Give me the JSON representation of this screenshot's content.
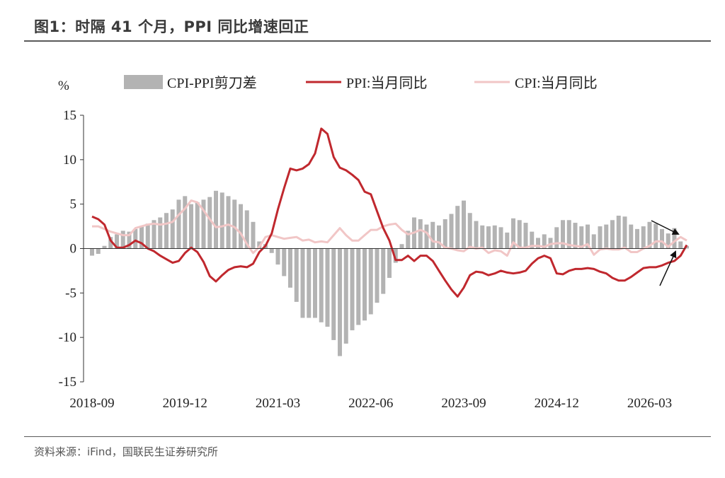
{
  "title": "图1：时隔 41 个月，PPI 同比增速回正",
  "source": "资料来源：iFind，国联民生证券研究所",
  "colors": {
    "bar": "#b3b3b3",
    "ppi": "#c0282e",
    "cpi": "#f1c6c6",
    "arrow": "#111111"
  },
  "chart_data": {
    "type": "bar",
    "ylabel": "%",
    "ylim": [
      -15,
      15
    ],
    "yticks": [
      15,
      10,
      5,
      0,
      -5,
      -10,
      -15
    ],
    "xticks": [
      "2018-09",
      "2019-12",
      "2021-03",
      "2022-06",
      "2023-09",
      "2024-12",
      "2026-03"
    ],
    "x_start": "2018-09",
    "legend_position": "top",
    "series": [
      {
        "name": "CPI-PPI剪刀差",
        "type": "bar",
        "values": [
          -0.8,
          -0.6,
          0.3,
          1.3,
          1.6,
          2.0,
          1.9,
          2.2,
          2.5,
          2.8,
          3.2,
          3.5,
          4.0,
          4.4,
          5.5,
          5.9,
          5.0,
          5.2,
          5.5,
          5.8,
          6.5,
          6.3,
          5.9,
          5.5,
          5.0,
          4.3,
          3.0,
          0.8,
          0.5,
          -0.5,
          -1.8,
          -3.1,
          -4.4,
          -6.0,
          -7.8,
          -7.8,
          -7.8,
          -8.3,
          -8.8,
          -10.3,
          -12.1,
          -10.7,
          -9.2,
          -8.6,
          -8.1,
          -7.4,
          -6.1,
          -5.1,
          -3.3,
          -1.6,
          0.5,
          2.0,
          3.5,
          3.3,
          2.7,
          3.0,
          2.6,
          3.3,
          3.9,
          4.8,
          5.4,
          4.0,
          3.1,
          2.6,
          2.5,
          2.6,
          2.4,
          1.8,
          3.4,
          3.2,
          2.9,
          1.9,
          1.2,
          1.6,
          1.2,
          2.4,
          3.2,
          3.2,
          2.9,
          2.5,
          2.7,
          1.6,
          2.5,
          2.7,
          3.2,
          3.7,
          3.6,
          2.7,
          2.2,
          2.5,
          3.0,
          2.8,
          2.2,
          1.7,
          2.3,
          0.8,
          0.3
        ]
      },
      {
        "name": "PPI:当月同比",
        "type": "line",
        "values": [
          3.6,
          3.3,
          2.7,
          0.9,
          0.1,
          0.1,
          0.4,
          0.9,
          0.6,
          0.0,
          -0.3,
          -0.8,
          -1.2,
          -1.6,
          -1.4,
          -0.5,
          0.1,
          -0.4,
          -1.5,
          -3.1,
          -3.7,
          -3.0,
          -2.4,
          -2.1,
          -2.0,
          -2.1,
          -1.7,
          -0.4,
          0.3,
          1.7,
          4.4,
          6.8,
          9.0,
          8.8,
          9.0,
          9.5,
          10.7,
          13.5,
          12.9,
          10.3,
          9.1,
          8.8,
          8.3,
          7.7,
          6.4,
          6.1,
          4.2,
          2.3,
          0.9,
          -1.3,
          -1.3,
          -0.8,
          -1.4,
          -0.8,
          -0.8,
          -1.4,
          -2.5,
          -3.6,
          -4.6,
          -5.4,
          -4.4,
          -3.0,
          -2.6,
          -2.7,
          -3.0,
          -2.8,
          -2.5,
          -2.7,
          -2.8,
          -2.7,
          -2.5,
          -1.7,
          -1.1,
          -0.8,
          -1.1,
          -2.8,
          -2.9,
          -2.5,
          -2.3,
          -2.3,
          -2.2,
          -2.3,
          -2.6,
          -2.8,
          -3.3,
          -3.6,
          -3.6,
          -3.2,
          -2.7,
          -2.2,
          -2.1,
          -2.1,
          -1.9,
          -1.6,
          -1.4,
          -0.8,
          0.4
        ]
      },
      {
        "name": "CPI:当月同比",
        "type": "line",
        "values": [
          2.5,
          2.5,
          2.2,
          1.9,
          1.7,
          1.5,
          1.5,
          2.3,
          2.5,
          2.7,
          2.8,
          2.7,
          2.8,
          3.0,
          3.8,
          4.5,
          5.4,
          5.2,
          4.3,
          3.3,
          2.4,
          2.5,
          2.7,
          2.4,
          1.7,
          0.5,
          -0.5,
          0.2,
          1.3,
          1.5,
          1.3,
          1.1,
          1.2,
          1.3,
          0.9,
          1.0,
          0.7,
          0.8,
          0.7,
          1.5,
          2.3,
          1.5,
          0.9,
          0.9,
          1.5,
          2.1,
          2.1,
          2.5,
          2.7,
          2.8,
          2.1,
          1.6,
          1.8,
          2.1,
          1.8,
          0.8,
          0.7,
          0.1,
          0.0,
          -0.2,
          -0.3,
          0.2,
          0.0,
          0.1,
          -0.5,
          -0.2,
          -0.3,
          -0.8,
          0.7,
          0.1,
          0.1,
          0.3,
          0.3,
          0.2,
          0.5,
          0.6,
          0.6,
          0.4,
          0.3,
          0.2,
          0.5,
          -0.7,
          -0.1,
          0.0,
          -0.1,
          -0.1,
          0.1,
          -0.4,
          -0.4,
          0.0,
          0.3,
          0.8,
          0.8,
          0.2,
          0.8,
          1.3,
          0.9
        ]
      }
    ]
  }
}
